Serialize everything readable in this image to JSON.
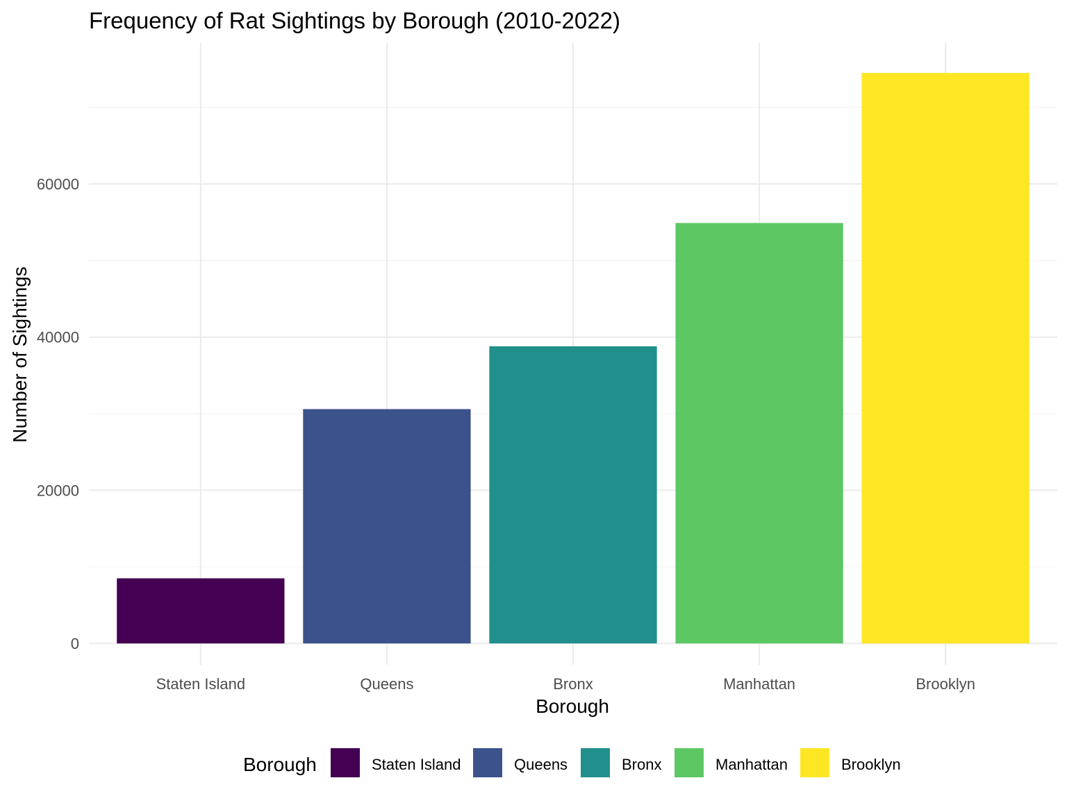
{
  "chart_data": {
    "type": "bar",
    "title": "Frequency of Rat Sightings by Borough (2010-2022)",
    "xlabel": "Borough",
    "ylabel": "Number of Sightings",
    "categories": [
      "Staten Island",
      "Queens",
      "Bronx",
      "Manhattan",
      "Brooklyn"
    ],
    "values": [
      8500,
      30600,
      38800,
      54900,
      74500
    ],
    "colors": [
      "#440154",
      "#3B528B",
      "#21908C",
      "#5DC863",
      "#FDE725"
    ],
    "yticks": [
      0,
      20000,
      40000,
      60000
    ],
    "ylim": [
      -2800,
      78400
    ],
    "grid": true,
    "legend": {
      "title": "Borough",
      "position": "bottom",
      "items": [
        "Staten Island",
        "Queens",
        "Bronx",
        "Manhattan",
        "Brooklyn"
      ]
    }
  }
}
